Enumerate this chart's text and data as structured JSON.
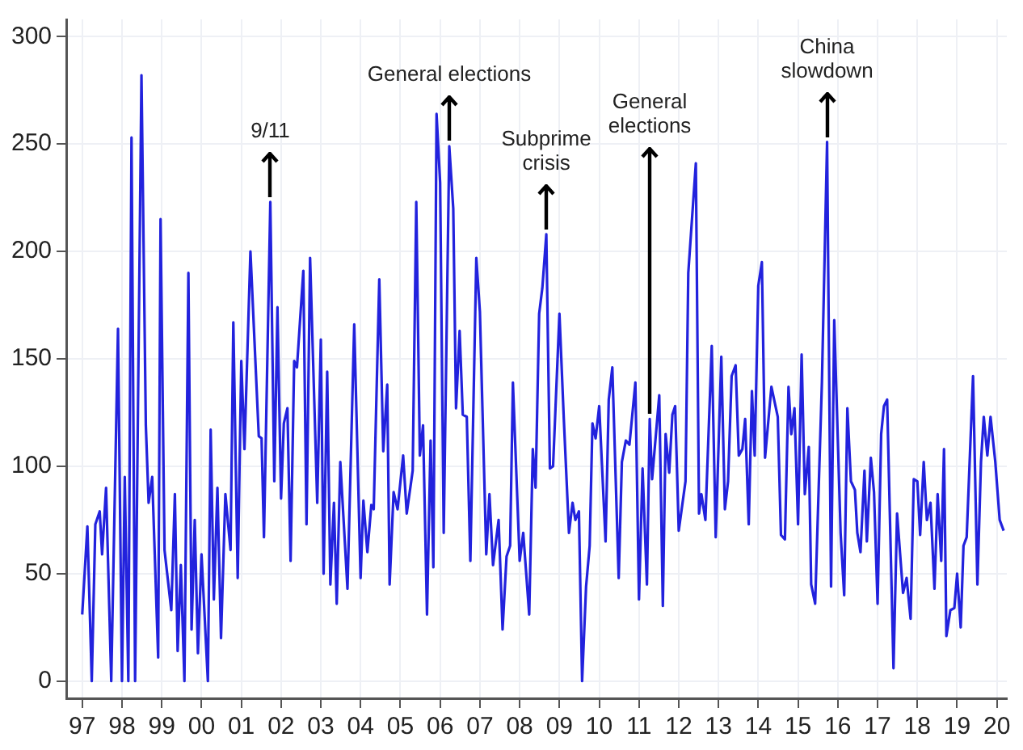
{
  "chart_data": {
    "type": "line",
    "marker": "none",
    "line_style": "solid",
    "grid": true,
    "legend": false,
    "xlim": [
      1996.6,
      2020.25
    ],
    "ylim": [
      -8,
      308
    ],
    "xticks": [
      {
        "value": 1997,
        "label": "97"
      },
      {
        "value": 1998,
        "label": "98"
      },
      {
        "value": 1999,
        "label": "99"
      },
      {
        "value": 2000,
        "label": "00"
      },
      {
        "value": 2001,
        "label": "01"
      },
      {
        "value": 2002,
        "label": "02"
      },
      {
        "value": 2003,
        "label": "03"
      },
      {
        "value": 2004,
        "label": "04"
      },
      {
        "value": 2005,
        "label": "05"
      },
      {
        "value": 2006,
        "label": "06"
      },
      {
        "value": 2007,
        "label": "07"
      },
      {
        "value": 2008,
        "label": "08"
      },
      {
        "value": 2009,
        "label": "09"
      },
      {
        "value": 2010,
        "label": "10"
      },
      {
        "value": 2011,
        "label": "11"
      },
      {
        "value": 2012,
        "label": "12"
      },
      {
        "value": 2013,
        "label": "13"
      },
      {
        "value": 2014,
        "label": "14"
      },
      {
        "value": 2015,
        "label": "15"
      },
      {
        "value": 2016,
        "label": "16"
      },
      {
        "value": 2017,
        "label": "17"
      },
      {
        "value": 2018,
        "label": "18"
      },
      {
        "value": 2019,
        "label": "19"
      },
      {
        "value": 2020,
        "label": "20"
      }
    ],
    "yticks": [
      0,
      50,
      100,
      150,
      200,
      250,
      300
    ],
    "annotations": [
      {
        "text": "9/11",
        "x": 2001.73,
        "y": 223
      },
      {
        "text": "General elections",
        "x": 2006.23,
        "y": 249
      },
      {
        "text": "Subprime\ncrisis",
        "x": 2008.67,
        "y": 208
      },
      {
        "text": "General\nelections",
        "x": 2011.27,
        "y": 122
      },
      {
        "text": "China\nslowdown",
        "x": 2015.73,
        "y": 251
      }
    ],
    "series": [
      {
        "color": "#2222dd",
        "x": [
          1997.0,
          1997.13,
          1997.24,
          1997.33,
          1997.44,
          1997.5,
          1997.6,
          1997.73,
          1997.9,
          1998.0,
          1998.07,
          1998.16,
          1998.24,
          1998.33,
          1998.49,
          1998.6,
          1998.67,
          1998.76,
          1998.91,
          1998.97,
          1999.07,
          1999.24,
          1999.33,
          1999.4,
          1999.48,
          1999.57,
          1999.67,
          1999.75,
          1999.83,
          1999.91,
          2000.0,
          2000.16,
          2000.23,
          2000.31,
          2000.4,
          2000.49,
          2000.6,
          2000.73,
          2000.8,
          2000.91,
          2001.0,
          2001.08,
          2001.23,
          2001.44,
          2001.51,
          2001.57,
          2001.73,
          2001.83,
          2001.91,
          2002.0,
          2002.07,
          2002.16,
          2002.24,
          2002.33,
          2002.4,
          2002.56,
          2002.64,
          2002.73,
          2002.91,
          2003.0,
          2003.07,
          2003.16,
          2003.24,
          2003.33,
          2003.4,
          2003.49,
          2003.67,
          2003.84,
          2004.0,
          2004.07,
          2004.17,
          2004.27,
          2004.33,
          2004.47,
          2004.57,
          2004.67,
          2004.73,
          2004.83,
          2004.93,
          2005.07,
          2005.16,
          2005.31,
          2005.4,
          2005.49,
          2005.57,
          2005.67,
          2005.76,
          2005.83,
          2005.91,
          2006.0,
          2006.09,
          2006.23,
          2006.33,
          2006.4,
          2006.49,
          2006.57,
          2006.67,
          2006.76,
          2006.91,
          2007.0,
          2007.16,
          2007.24,
          2007.33,
          2007.47,
          2007.57,
          2007.67,
          2007.76,
          2007.83,
          2008.0,
          2008.09,
          2008.24,
          2008.33,
          2008.4,
          2008.49,
          2008.57,
          2008.67,
          2008.76,
          2008.84,
          2009.0,
          2009.11,
          2009.24,
          2009.33,
          2009.4,
          2009.49,
          2009.57,
          2009.67,
          2009.76,
          2009.83,
          2009.91,
          2010.0,
          2010.16,
          2010.24,
          2010.33,
          2010.49,
          2010.57,
          2010.67,
          2010.76,
          2010.91,
          2011.0,
          2011.09,
          2011.2,
          2011.27,
          2011.33,
          2011.51,
          2011.6,
          2011.67,
          2011.76,
          2011.84,
          2011.91,
          2012.0,
          2012.17,
          2012.24,
          2012.43,
          2012.51,
          2012.57,
          2012.67,
          2012.83,
          2012.93,
          2013.07,
          2013.16,
          2013.24,
          2013.33,
          2013.43,
          2013.51,
          2013.6,
          2013.67,
          2013.76,
          2013.84,
          2013.91,
          2014.0,
          2014.09,
          2014.17,
          2014.33,
          2014.49,
          2014.57,
          2014.67,
          2014.76,
          2014.83,
          2014.91,
          2015.0,
          2015.09,
          2015.17,
          2015.27,
          2015.33,
          2015.43,
          2015.6,
          2015.73,
          2015.83,
          2015.91,
          2016.07,
          2016.16,
          2016.24,
          2016.33,
          2016.43,
          2016.49,
          2016.57,
          2016.67,
          2016.73,
          2016.83,
          2016.91,
          2017.0,
          2017.09,
          2017.16,
          2017.24,
          2017.4,
          2017.49,
          2017.64,
          2017.73,
          2017.83,
          2017.91,
          2018.0,
          2018.07,
          2018.16,
          2018.24,
          2018.33,
          2018.43,
          2018.51,
          2018.6,
          2018.67,
          2018.73,
          2018.83,
          2018.93,
          2019.0,
          2019.09,
          2019.16,
          2019.24,
          2019.4,
          2019.51,
          2019.6,
          2019.67,
          2019.76,
          2019.84,
          2019.96,
          2020.07,
          2020.17
        ],
        "values": [
          31,
          72,
          0,
          73,
          79,
          59,
          90,
          0,
          164,
          0,
          95,
          0,
          253,
          0,
          282,
          119,
          83,
          95,
          11,
          215,
          61,
          33,
          87,
          14,
          54,
          0,
          190,
          24,
          75,
          13,
          59,
          0,
          117,
          38,
          90,
          20,
          87,
          61,
          167,
          48,
          149,
          108,
          200,
          114,
          113,
          67,
          223,
          93,
          174,
          85,
          120,
          127,
          56,
          149,
          146,
          191,
          73,
          197,
          83,
          159,
          50,
          144,
          45,
          83,
          36,
          102,
          43,
          166,
          48,
          84,
          60,
          82,
          80,
          187,
          107,
          138,
          45,
          88,
          80,
          105,
          78,
          98,
          223,
          105,
          119,
          31,
          112,
          53,
          264,
          232,
          69,
          249,
          220,
          127,
          163,
          124,
          123,
          56,
          197,
          172,
          59,
          87,
          54,
          75,
          24,
          58,
          63,
          139,
          56,
          69,
          31,
          108,
          90,
          171,
          183,
          208,
          99,
          100,
          171,
          122,
          69,
          83,
          75,
          79,
          0,
          44,
          63,
          120,
          113,
          128,
          65,
          131,
          146,
          48,
          102,
          112,
          110,
          139,
          38,
          99,
          45,
          122,
          94,
          133,
          35,
          115,
          97,
          124,
          128,
          70,
          93,
          190,
          241,
          78,
          87,
          75,
          156,
          67,
          151,
          80,
          93,
          142,
          147,
          105,
          108,
          122,
          73,
          135,
          105,
          184,
          195,
          104,
          137,
          123,
          68,
          66,
          137,
          115,
          127,
          73,
          152,
          87,
          109,
          45,
          36,
          139,
          251,
          44,
          168,
          69,
          40,
          127,
          93,
          89,
          69,
          60,
          98,
          65,
          104,
          88,
          36,
          115,
          128,
          131,
          6,
          78,
          41,
          48,
          29,
          94,
          93,
          68,
          102,
          75,
          83,
          43,
          87,
          56,
          108,
          21,
          33,
          34,
          50,
          25,
          63,
          67,
          142,
          45,
          102,
          123,
          105,
          123,
          102,
          75,
          70
        ]
      }
    ]
  }
}
